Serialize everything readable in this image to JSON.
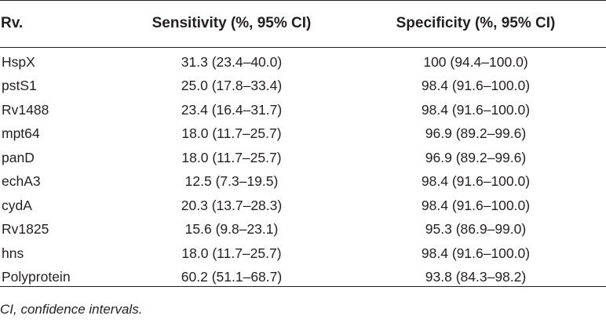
{
  "table": {
    "headers": [
      "Rv.",
      "Sensitivity (%, 95% CI)",
      "Specificity (%, 95% CI)"
    ],
    "rows": [
      [
        "HspX",
        "31.3 (23.4–40.0)",
        "100 (94.4–100.0)"
      ],
      [
        "pstS1",
        "25.0 (17.8–33.4)",
        "98.4 (91.6–100.0)"
      ],
      [
        "Rv1488",
        "23.4 (16.4–31.7)",
        "98.4 (91.6–100.0)"
      ],
      [
        "mpt64",
        "18.0 (11.7–25.7)",
        "96.9 (89.2–99.6)"
      ],
      [
        "panD",
        "18.0 (11.7–25.7)",
        "96.9 (89.2–99.6)"
      ],
      [
        "echA3",
        "12.5 (7.3–19.5)",
        "98.4 (91.6–100.0)"
      ],
      [
        "cydA",
        "20.3 (13.7–28.3)",
        "98.4 (91.6–100.0)"
      ],
      [
        "Rv1825",
        "15.6 (9.8–23.1)",
        "95.3 (86.9–99.0)"
      ],
      [
        "hns",
        "18.0 (11.7–25.7)",
        "98.4 (91.6–100.0)"
      ],
      [
        "Polyprotein",
        "60.2 (51.1–68.7)",
        "93.8 (84.3–98.2)"
      ]
    ]
  },
  "footnote": "CI, confidence intervals."
}
